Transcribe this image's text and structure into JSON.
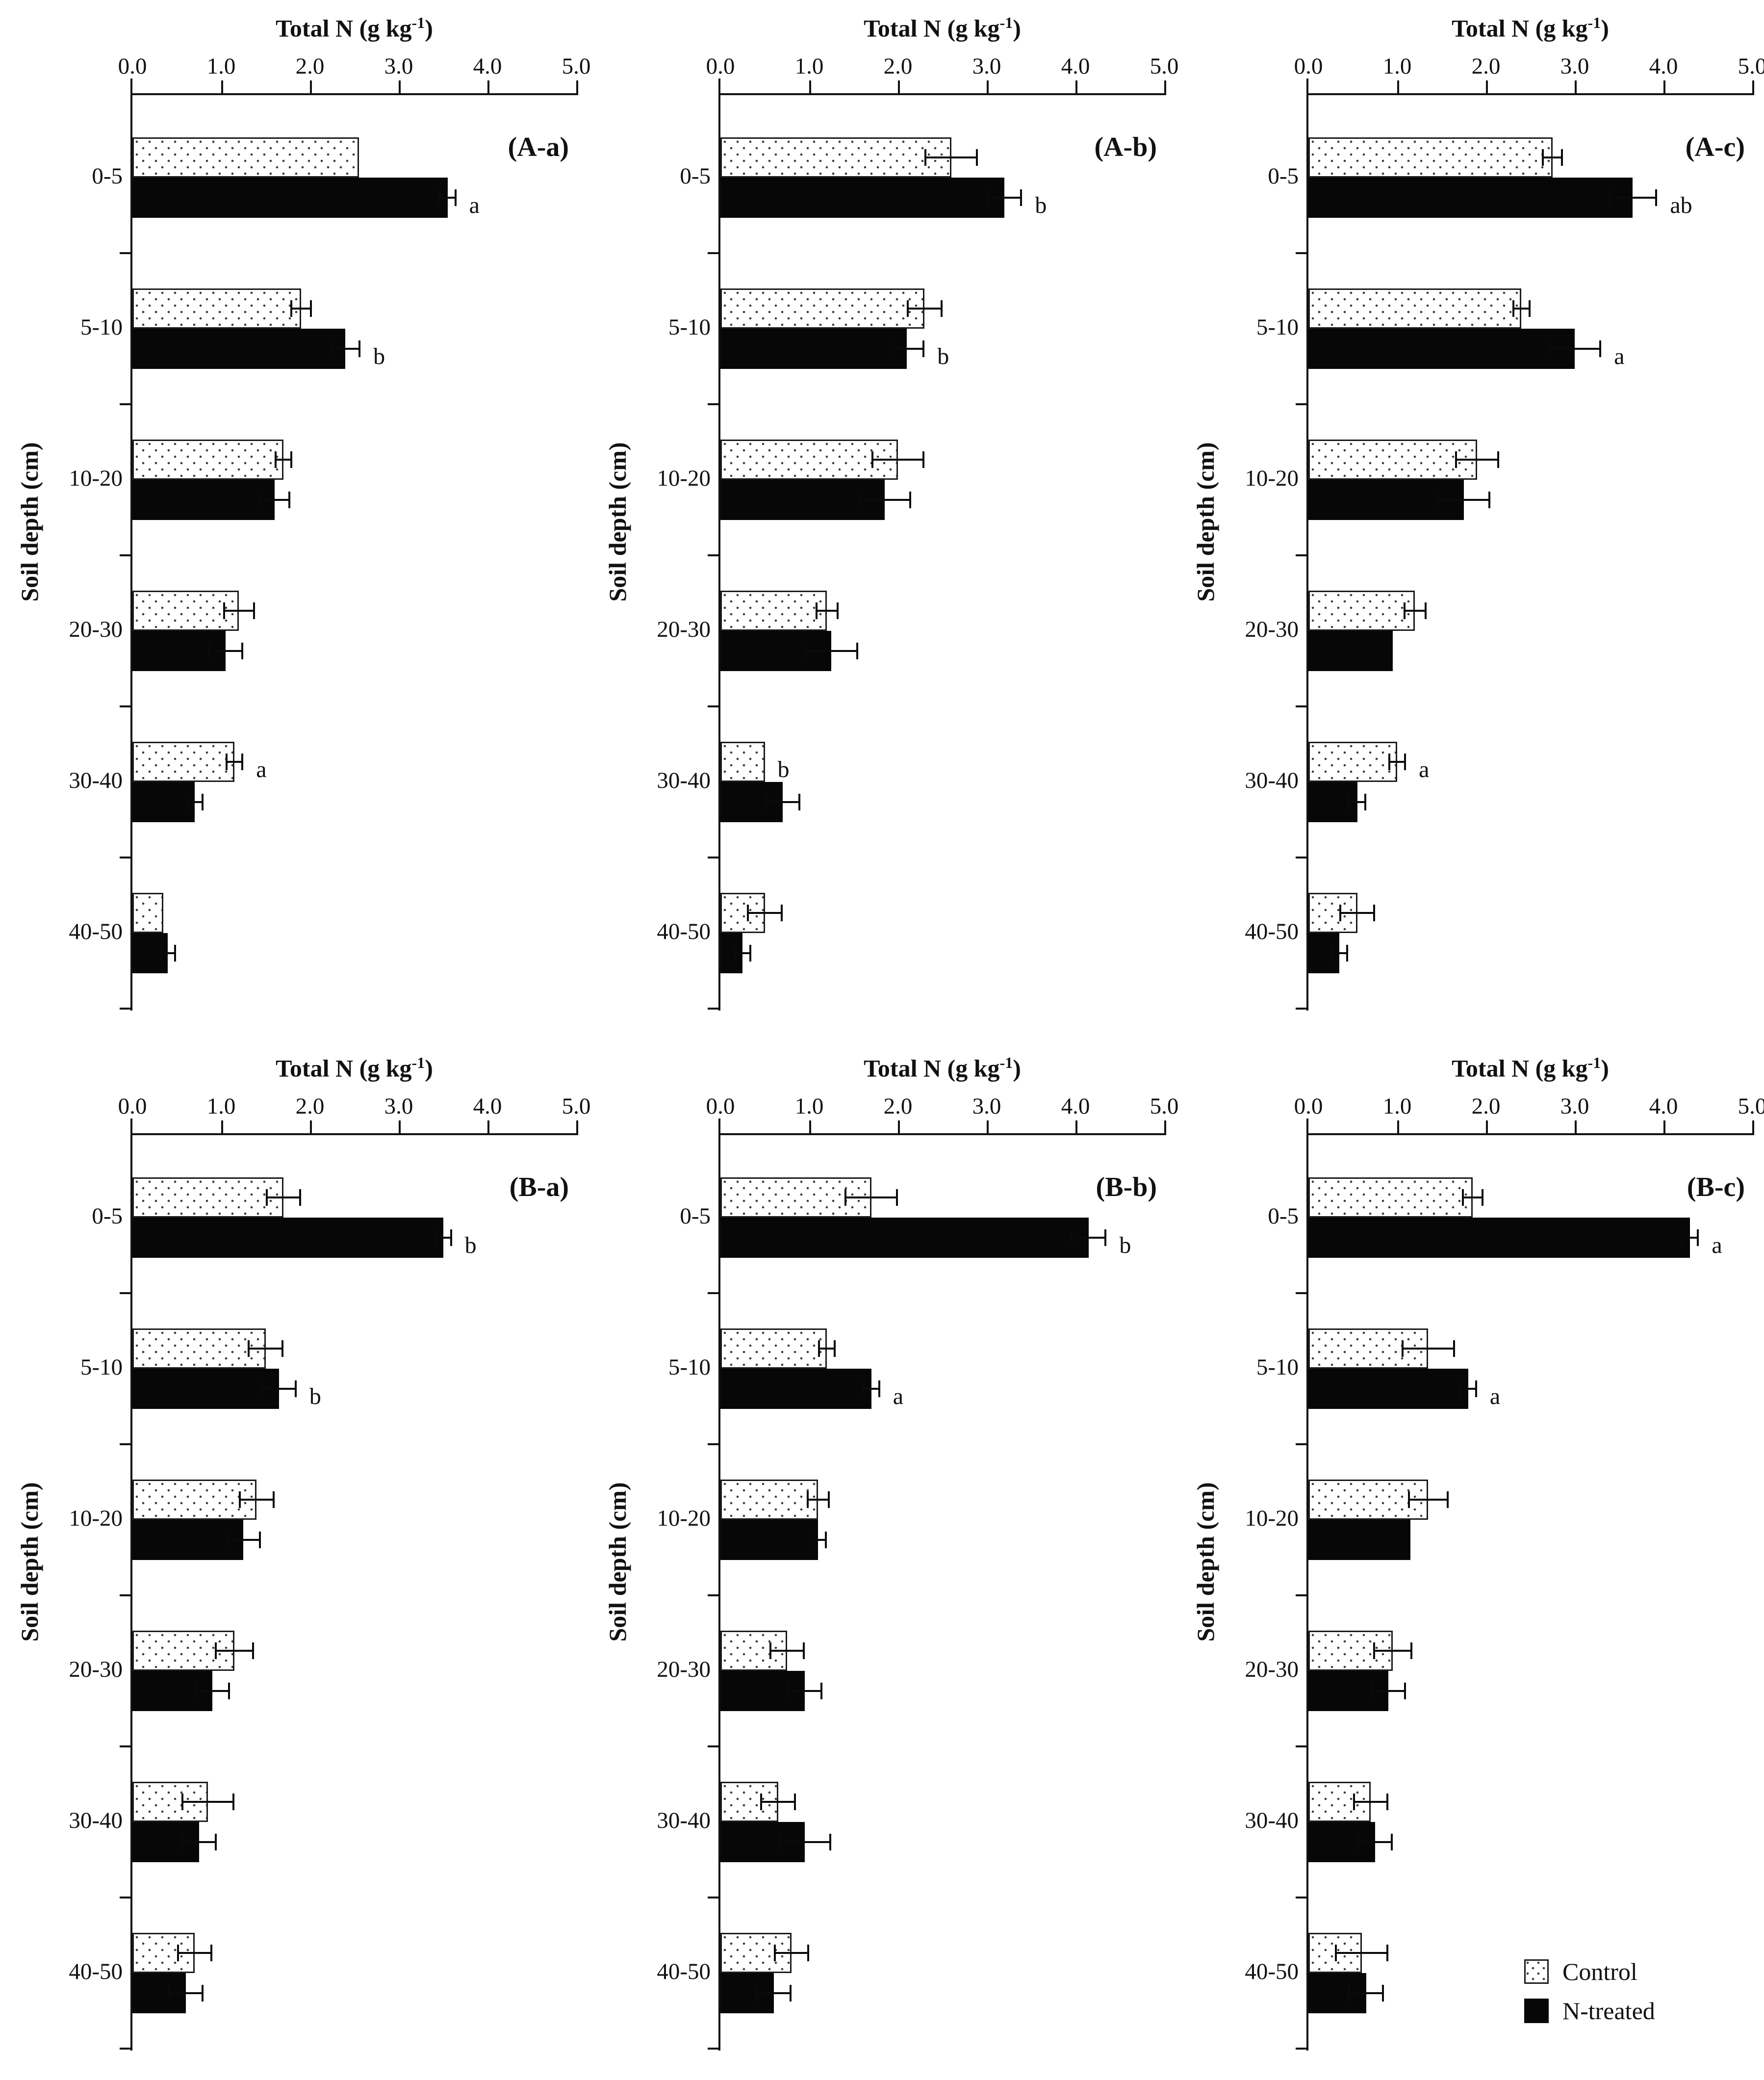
{
  "figure": {
    "title_main": "Total N (g kg",
    "title_sup": "-1",
    "title_close": ")",
    "ylabel": "Soil depth (cm)",
    "x_ticks": [
      "0.0",
      "1.0",
      "2.0",
      "3.0",
      "4.0",
      "5.0"
    ],
    "legend": {
      "control": "Control",
      "treated": "N-treated"
    }
  },
  "colors": {
    "bar_black": "#070707",
    "axis": "#111111",
    "dot_pattern": "#3a3a3a"
  },
  "chart_data": {
    "type": "bar",
    "orientation": "horizontal",
    "title": "Total N (g kg-1)",
    "xlabel": "Total N (g kg-1)",
    "ylabel": "Soil depth (cm)",
    "xlim": [
      0,
      5
    ],
    "x_tick_values": [
      0.0,
      1.0,
      2.0,
      3.0,
      4.0,
      5.0
    ],
    "grid": false,
    "legend_position": "bottom-right",
    "categories": [
      "0-5",
      "5-10",
      "10-20",
      "20-30",
      "30-40",
      "40-50"
    ],
    "series_names": [
      "Control",
      "N-treated"
    ],
    "panels": [
      {
        "id": "A-a",
        "label": "(A-a)",
        "control": {
          "values": [
            2.55,
            1.9,
            1.7,
            1.2,
            1.15,
            0.35
          ],
          "errors": [
            0,
            0.12,
            0.1,
            0.18,
            0.1,
            0
          ],
          "letters": [
            "",
            "",
            "",
            "",
            "a",
            ""
          ]
        },
        "treated": {
          "values": [
            3.55,
            2.4,
            1.6,
            1.05,
            0.7,
            0.4
          ],
          "errors": [
            0.1,
            0.17,
            0.18,
            0.2,
            0.1,
            0.09
          ],
          "letters": [
            "a",
            "b",
            "",
            "",
            "",
            ""
          ]
        }
      },
      {
        "id": "A-b",
        "label": "(A-b)",
        "control": {
          "values": [
            2.6,
            2.3,
            2.0,
            1.2,
            0.5,
            0.5
          ],
          "errors": [
            0.3,
            0.2,
            0.3,
            0.13,
            0,
            0.2
          ],
          "letters": [
            "",
            "",
            "",
            "",
            "b",
            ""
          ]
        },
        "treated": {
          "values": [
            3.2,
            2.1,
            1.85,
            1.25,
            0.7,
            0.25
          ],
          "errors": [
            0.2,
            0.2,
            0.3,
            0.3,
            0.2,
            0.1
          ],
          "letters": [
            "b",
            "b",
            "",
            "",
            "",
            ""
          ]
        }
      },
      {
        "id": "A-c",
        "label": "(A-c)",
        "control": {
          "values": [
            2.75,
            2.4,
            1.9,
            1.2,
            1.0,
            0.55
          ],
          "errors": [
            0.12,
            0.1,
            0.25,
            0.13,
            0.1,
            0.2
          ],
          "letters": [
            "",
            "",
            "",
            "",
            "a",
            ""
          ]
        },
        "treated": {
          "values": [
            3.65,
            3.0,
            1.75,
            0.95,
            0.55,
            0.35
          ],
          "errors": [
            0.28,
            0.3,
            0.3,
            0,
            0.1,
            0.1
          ],
          "letters": [
            "ab",
            "a",
            "",
            "",
            "",
            ""
          ]
        }
      },
      {
        "id": "B-a",
        "label": "(B-a)",
        "control": {
          "values": [
            1.7,
            1.5,
            1.4,
            1.15,
            0.85,
            0.7
          ],
          "errors": [
            0.2,
            0.2,
            0.2,
            0.22,
            0.3,
            0.2
          ],
          "letters": [
            "",
            "",
            "",
            "",
            "",
            ""
          ]
        },
        "treated": {
          "values": [
            3.5,
            1.65,
            1.25,
            0.9,
            0.75,
            0.6
          ],
          "errors": [
            0.1,
            0.2,
            0.2,
            0.2,
            0.2,
            0.2
          ],
          "letters": [
            "b",
            "b",
            "",
            "",
            "",
            ""
          ]
        }
      },
      {
        "id": "B-b",
        "label": "(B-b)",
        "control": {
          "values": [
            1.7,
            1.2,
            1.1,
            0.75,
            0.65,
            0.8
          ],
          "errors": [
            0.3,
            0.1,
            0.13,
            0.2,
            0.2,
            0.2
          ],
          "letters": [
            "",
            "",
            "",
            "",
            "",
            ""
          ]
        },
        "treated": {
          "values": [
            4.15,
            1.7,
            1.1,
            0.95,
            0.95,
            0.6
          ],
          "errors": [
            0.2,
            0.1,
            0.1,
            0.2,
            0.3,
            0.2
          ],
          "letters": [
            "b",
            "a",
            "",
            "",
            "",
            ""
          ]
        }
      },
      {
        "id": "B-c",
        "label": "(B-c)",
        "control": {
          "values": [
            1.85,
            1.35,
            1.35,
            0.95,
            0.7,
            0.6
          ],
          "errors": [
            0.12,
            0.3,
            0.23,
            0.22,
            0.2,
            0.3
          ],
          "letters": [
            "",
            "",
            "",
            "",
            "",
            ""
          ]
        },
        "treated": {
          "values": [
            4.3,
            1.8,
            1.15,
            0.9,
            0.75,
            0.65
          ],
          "errors": [
            0.1,
            0.1,
            0,
            0.2,
            0.2,
            0.2
          ],
          "letters": [
            "a",
            "a",
            "",
            "",
            "",
            ""
          ]
        }
      }
    ]
  }
}
